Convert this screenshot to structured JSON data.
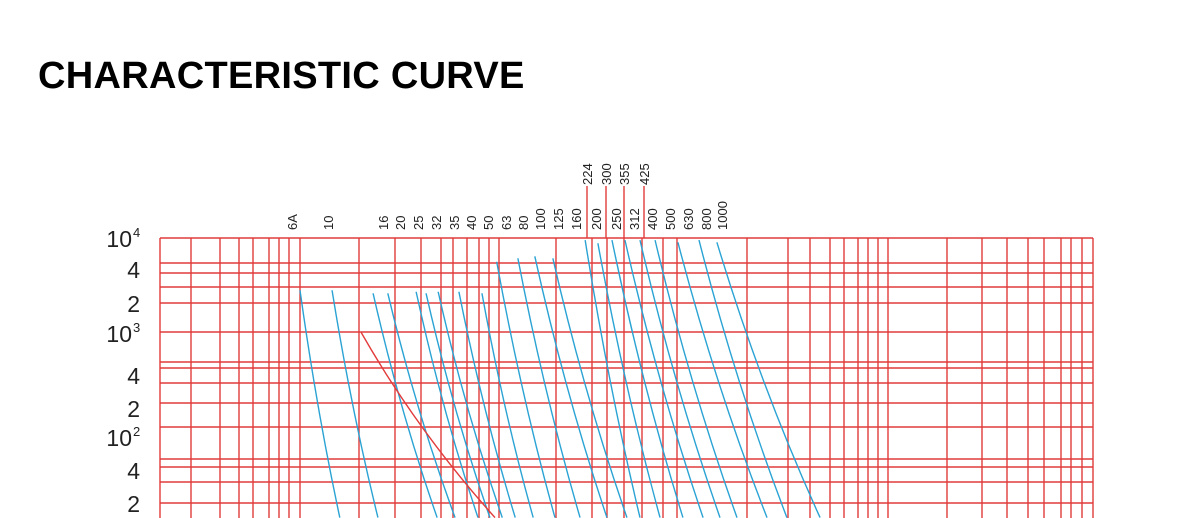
{
  "title": "CHARACTERISTIC CURVE",
  "chart_data": {
    "type": "line",
    "title": "CHARACTERISTIC CURVE",
    "xlabel": "",
    "ylabel": "",
    "x_scale": "log",
    "y_scale": "log",
    "ylim": [
      10,
      10000
    ],
    "grid": true,
    "colors": {
      "grid": "#e23b3b",
      "curve": "#2aa3d4",
      "highlight_curve": "#e23b3b"
    },
    "y_ticks": [
      {
        "base": "10",
        "exp": "4",
        "value": 10000
      },
      {
        "base": "4",
        "exp": "",
        "value": 4000
      },
      {
        "base": "2",
        "exp": "",
        "value": 2000
      },
      {
        "base": "10",
        "exp": "3",
        "value": 1000
      },
      {
        "base": "4",
        "exp": "",
        "value": 400
      },
      {
        "base": "2",
        "exp": "",
        "value": 200
      },
      {
        "base": "10",
        "exp": "2",
        "value": 100
      },
      {
        "base": "4",
        "exp": "",
        "value": 40
      },
      {
        "base": "2",
        "exp": "",
        "value": 20
      }
    ],
    "rating_labels": [
      "6A",
      "10",
      "16",
      "20",
      "25",
      "32",
      "35",
      "40",
      "50",
      "63",
      "80",
      "100",
      "125",
      "160",
      "200",
      "250",
      "312",
      "400",
      "500",
      "630",
      "800",
      "1000"
    ],
    "upper_rating_labels": [
      "224",
      "300",
      "355",
      "425"
    ],
    "series": [
      {
        "name": "6A",
        "points": [
          [
            10.0,
            2800
          ],
          [
            16.0,
            11
          ]
        ]
      },
      {
        "name": "10",
        "points": [
          [
            14.6,
            2800
          ],
          [
            25.1,
            11
          ]
        ]
      },
      {
        "name": "16",
        "points": [
          [
            23.7,
            2600
          ],
          [
            50.5,
            11
          ]
        ]
      },
      {
        "name": "20",
        "points": [
          [
            28.2,
            2600
          ],
          [
            62.4,
            11
          ]
        ]
      },
      {
        "name": "25",
        "points": [
          [
            39.4,
            2700
          ],
          [
            81.8,
            11
          ]
        ]
      },
      {
        "name": "32",
        "points": [
          [
            44.3,
            2600
          ],
          [
            94.2,
            11
          ]
        ]
      },
      {
        "name": "35",
        "points": [
          [
            51.1,
            2700
          ],
          [
            109,
            11
          ]
        ]
      },
      {
        "name": "40",
        "points": [
          [
            65.3,
            2700
          ],
          [
            127,
            11
          ]
        ]
      },
      {
        "name": "50",
        "points": [
          [
            85.7,
            2600
          ],
          [
            157,
            11
          ]
        ]
      },
      {
        "name": "63",
        "points": [
          [
            102,
            5600
          ],
          [
            203,
            11
          ]
        ]
      },
      {
        "name": "80",
        "points": [
          [
            131,
            6100
          ],
          [
            273,
            11
          ]
        ]
      },
      {
        "name": "100",
        "points": [
          [
            160,
            6400
          ],
          [
            375,
            11
          ]
        ]
      },
      {
        "name": "125",
        "points": [
          [
            198,
            6100
          ],
          [
            475,
            11
          ]
        ]
      },
      {
        "name": "160",
        "points": [
          [
            290,
            9500
          ],
          [
            554,
            11
          ]
        ]
      },
      {
        "name": "200",
        "points": [
          [
            337,
            8800
          ],
          [
            702,
            11
          ]
        ]
      },
      {
        "name": "250",
        "points": [
          [
            398,
            9500
          ],
          [
            920,
            11
          ]
        ]
      },
      {
        "name": "312",
        "points": [
          [
            464,
            9500
          ],
          [
            1167,
            11
          ]
        ]
      },
      {
        "name": "400",
        "points": [
          [
            554,
            9500
          ],
          [
            1425,
            11
          ]
        ]
      },
      {
        "name": "500",
        "points": [
          [
            662,
            9500
          ],
          [
            1742,
            11
          ]
        ]
      },
      {
        "name": "630",
        "points": [
          [
            867,
            9000
          ],
          [
            2483,
            11
          ]
        ]
      },
      {
        "name": "800",
        "points": [
          [
            1112,
            9500
          ],
          [
            3141,
            11
          ]
        ]
      },
      {
        "name": "1000",
        "points": [
          [
            1374,
            9000
          ],
          [
            4645,
            11
          ]
        ]
      },
      {
        "name": "",
        "highlight": true,
        "points": [
          [
            20.6,
            1000
          ],
          [
            100,
            11
          ]
        ]
      }
    ]
  }
}
